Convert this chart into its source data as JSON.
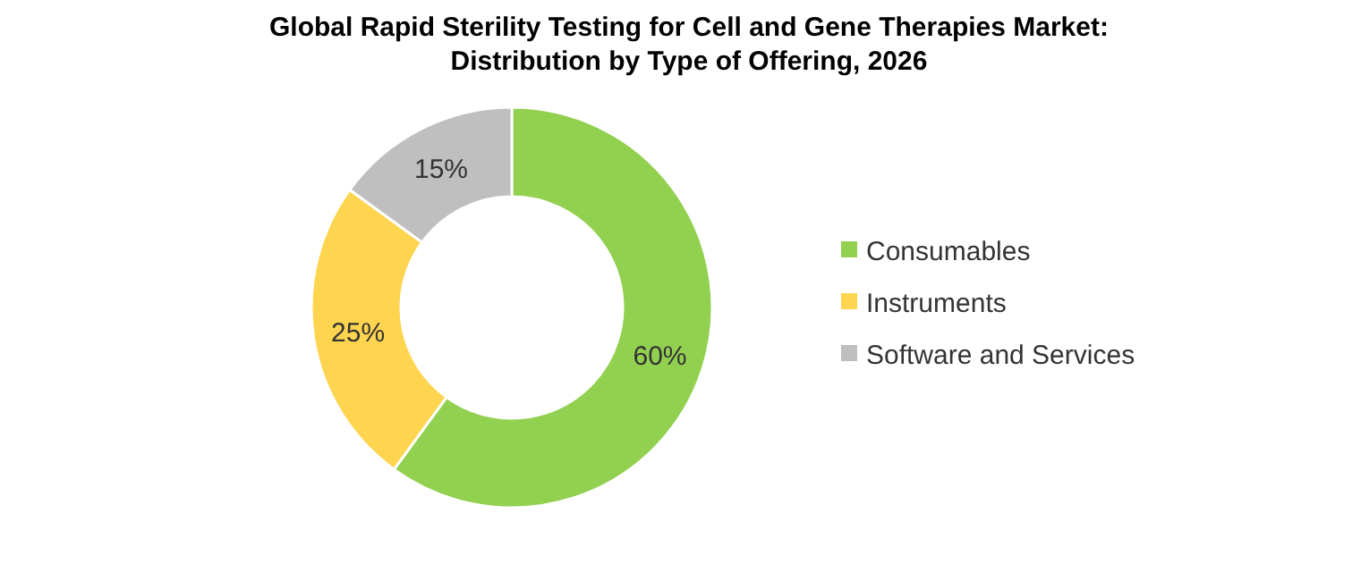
{
  "chart_data": {
    "type": "donut",
    "title": "Global Rapid Sterility Testing for Cell and Gene Therapies Market:\nDistribution by Type of Offering, 2026",
    "categories": [
      "Consumables",
      "Instruments",
      "Software and Services"
    ],
    "values": [
      60,
      25,
      15
    ],
    "colors": [
      "#92d050",
      "#ffd44f",
      "#bfbfbf"
    ],
    "value_labels": [
      "60%",
      "25%",
      "15%"
    ],
    "legend": "right"
  }
}
